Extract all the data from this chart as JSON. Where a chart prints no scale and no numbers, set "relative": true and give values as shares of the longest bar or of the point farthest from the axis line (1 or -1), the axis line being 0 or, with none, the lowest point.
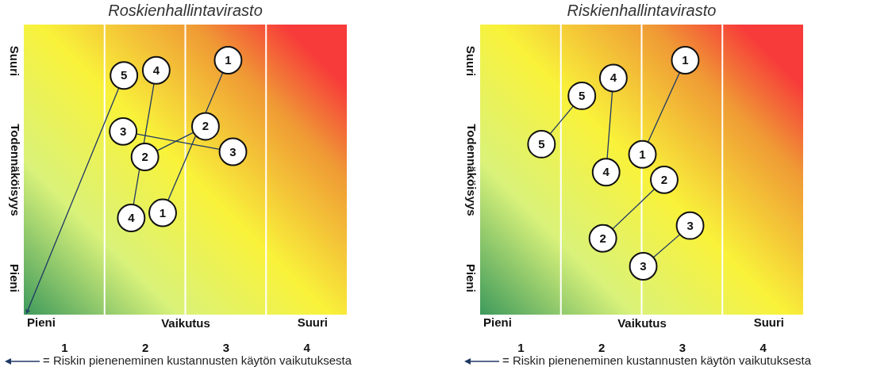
{
  "chart_data": [
    {
      "type": "line",
      "title": "Roskienhallintavirasto",
      "xlabel": "Vaikutus",
      "ylabel": "Todennäköisyys",
      "xlim": [
        0.5,
        4.5
      ],
      "relative": true,
      "xticks": [
        1,
        2,
        3,
        4,
        {
          "value": 1.5,
          "label": null
        },
        {
          "value": 2.5,
          "label": null
        },
        {
          "value": 3.5,
          "label": null
        }
      ],
      "grid": "x",
      "line_style": "solid",
      "series": [
        {
          "name": "1",
          "color": "#1f3864",
          "marker": "circle",
          "x": [
            3.03,
            2.22
          ],
          "values": [
            1.0,
            0.4
          ]
        },
        {
          "name": "2",
          "color": "#1f3864",
          "marker": "circle",
          "x": [
            2.75,
            2.0
          ],
          "values": [
            0.74,
            0.62
          ]
        },
        {
          "name": "3",
          "color": "#1f3864",
          "marker": "circle",
          "x": [
            3.09,
            1.73
          ],
          "values": [
            0.64,
            0.72
          ]
        },
        {
          "name": "4",
          "color": "#1f3864",
          "marker": "circle",
          "x": [
            2.14,
            1.83
          ],
          "values": [
            0.96,
            0.38
          ]
        },
        {
          "name": "5",
          "type": "scatter",
          "color": "#ffffff",
          "x": [
            1.74
          ],
          "values": [
            0.94
          ]
        },
        {
          "marker": "triangle",
          "color": "#1f3864",
          "x": [
            1.74,
            0.54
          ],
          "values": [
            0.94,
            0.01
          ]
        }
      ],
      "annotations": [
        "Suuri",
        "Pieni",
        "Pieni",
        "Suuri",
        "= Riskin pieneneminen kustannusten käytön vaikutuksesta"
      ]
    },
    {
      "type": "line",
      "title": "Riskienhallintavirasto",
      "xlabel": "Vaikutus",
      "ylabel": "Todennäköisyys",
      "xlim": [
        0.5,
        4.5
      ],
      "relative": true,
      "xticks": [
        1,
        2,
        3,
        4,
        {
          "value": 1.5,
          "label": null
        },
        {
          "value": 2.5,
          "label": null
        },
        {
          "value": 3.5,
          "label": null
        }
      ],
      "grid": "x",
      "line_style": "solid",
      "series": [
        {
          "name": "1",
          "color": "#1f3864",
          "marker": "circle",
          "x": [
            3.04,
            2.51
          ],
          "values": [
            1.0,
            0.63
          ]
        },
        {
          "name": "2",
          "color": "#1f3864",
          "marker": "circle",
          "x": [
            2.78,
            2.02
          ],
          "values": [
            0.53,
            0.3
          ]
        },
        {
          "name": "3",
          "color": "#1f3864",
          "marker": "circle",
          "x": [
            3.1,
            2.52
          ],
          "values": [
            0.35,
            0.19
          ]
        },
        {
          "name": "4",
          "color": "#1f3864",
          "marker": "circle",
          "x": [
            2.15,
            2.06
          ],
          "values": [
            0.93,
            0.56
          ]
        },
        {
          "name": "5",
          "color": "#1f3864",
          "marker": "circle",
          "x": [
            1.76,
            1.26
          ],
          "values": [
            0.86,
            0.67
          ]
        }
      ],
      "annotations": [
        "Suuri",
        "Pieni",
        "Pieni",
        "Suuri",
        "= Riskin pieneneminen kustannusten käytön vaikutuksesta"
      ]
    }
  ]
}
